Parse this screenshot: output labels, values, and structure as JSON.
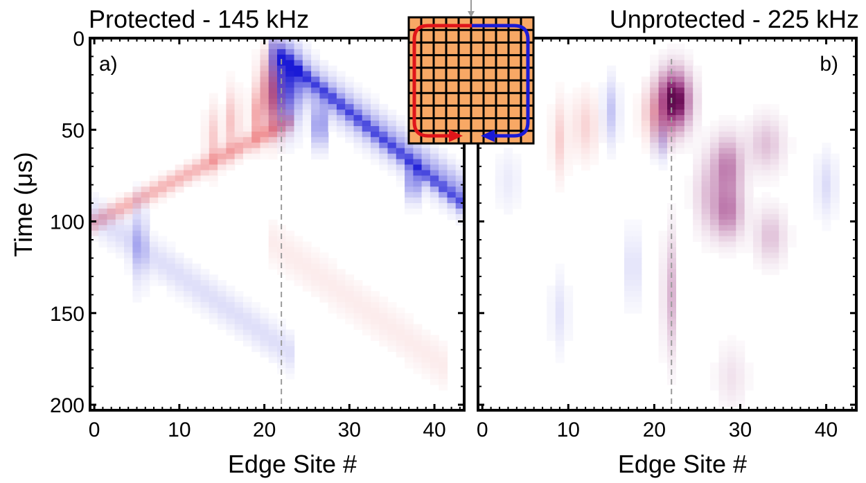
{
  "chart_data": [
    {
      "type": "heatmap",
      "title": "Protected - 145 kHz",
      "panel_label": "a)",
      "xlabel": "Edge Site #",
      "ylabel": "Time (μs)",
      "xlim": [
        -0.5,
        43.5
      ],
      "ylim": [
        0,
        203
      ],
      "y_direction": "downward",
      "xticks": [
        "0",
        "10",
        "20",
        "30",
        "40"
      ],
      "yticks": [
        "0",
        "50",
        "100",
        "150",
        "200"
      ],
      "colors": {
        "positive": "#e0151a",
        "negative": "#1a1ad6"
      },
      "injection_site": 22,
      "features": [
        {
          "kind": "band",
          "sign": 1,
          "x": [
            1,
            22
          ],
          "t": [
            98,
            48
          ],
          "width": 5,
          "amp": 0.32
        },
        {
          "kind": "band",
          "sign": -1,
          "x": [
            22,
            44
          ],
          "t": [
            12,
            88
          ],
          "width": 11,
          "amp": 0.38
        },
        {
          "kind": "band",
          "sign": -1,
          "x": [
            23,
            44
          ],
          "t": [
            14,
            93
          ],
          "width": 4,
          "amp": 0.45
        },
        {
          "kind": "band",
          "sign": -1,
          "x": [
            0,
            22
          ],
          "t": [
            97,
            168
          ],
          "width": 10,
          "amp": 0.14
        },
        {
          "kind": "band",
          "sign": 1,
          "x": [
            22,
            40
          ],
          "t": [
            115,
            175
          ],
          "width": 12,
          "amp": 0.08
        },
        {
          "kind": "blob",
          "sign": 1,
          "x": 21,
          "t": 30,
          "sx": 1.0,
          "st": 14,
          "amp": 0.65
        },
        {
          "kind": "blob",
          "sign": -1,
          "x": 22.6,
          "t": 27,
          "sx": 1.2,
          "st": 14,
          "amp": 0.7
        },
        {
          "kind": "blob",
          "sign": -1,
          "x": 26.5,
          "t": 48,
          "sx": 0.5,
          "st": 8,
          "amp": 0.6
        },
        {
          "kind": "blob",
          "sign": -1,
          "x": 37.5,
          "t": 79,
          "sx": 0.5,
          "st": 7,
          "amp": 0.55
        },
        {
          "kind": "blob",
          "sign": 1,
          "x": 16.3,
          "t": 46,
          "sx": 0.5,
          "st": 12,
          "amp": 0.3
        },
        {
          "kind": "blob",
          "sign": 1,
          "x": 19,
          "t": 43,
          "sx": 0.5,
          "st": 10,
          "amp": 0.3
        },
        {
          "kind": "blob",
          "sign": 1,
          "x": 14,
          "t": 55,
          "sx": 0.6,
          "st": 12,
          "amp": 0.22
        },
        {
          "kind": "blob",
          "sign": -1,
          "x": 5.3,
          "t": 112,
          "sx": 0.6,
          "st": 15,
          "amp": 0.28
        }
      ]
    },
    {
      "type": "heatmap",
      "title": "Unprotected - 225 kHz",
      "panel_label": "b)",
      "xlabel": "Edge Site #",
      "xlim": [
        -0.5,
        43.5
      ],
      "ylim": [
        0,
        203
      ],
      "y_direction": "downward",
      "xticks": [
        "0",
        "10",
        "20",
        "30",
        "40"
      ],
      "colors": {
        "positive": "#e0151a",
        "negative": "#1a1ad6"
      },
      "injection_site": 22,
      "features": [
        {
          "kind": "blob",
          "sign": 0,
          "x": 22.3,
          "t": 34,
          "sx": 1.3,
          "st": 11,
          "amp": 0.95
        },
        {
          "kind": "blob",
          "sign": 1,
          "x": 20.5,
          "t": 42,
          "sx": 1.2,
          "st": 10,
          "amp": 0.35
        },
        {
          "kind": "blob",
          "sign": -1,
          "x": 20.8,
          "t": 55,
          "sx": 0.6,
          "st": 8,
          "amp": 0.25
        },
        {
          "kind": "blob",
          "sign": -1,
          "x": 15,
          "t": 40,
          "sx": 0.6,
          "st": 12,
          "amp": 0.25
        },
        {
          "kind": "blob",
          "sign": 1,
          "x": 9,
          "t": 55,
          "sx": 0.6,
          "st": 14,
          "amp": 0.2
        },
        {
          "kind": "blob",
          "sign": 1,
          "x": 12,
          "t": 48,
          "sx": 1.0,
          "st": 12,
          "amp": 0.18
        },
        {
          "kind": "blob",
          "sign": 0,
          "x": 28.5,
          "t": 70,
          "sx": 1.2,
          "st": 11,
          "amp": 0.45
        },
        {
          "kind": "blob",
          "sign": 0,
          "x": 28.5,
          "t": 95,
          "sx": 1.2,
          "st": 10,
          "amp": 0.45
        },
        {
          "kind": "blob",
          "sign": 0,
          "x": 33,
          "t": 58,
          "sx": 1.4,
          "st": 10,
          "amp": 0.22
        },
        {
          "kind": "blob",
          "sign": 0,
          "x": 33.5,
          "t": 108,
          "sx": 1.2,
          "st": 10,
          "amp": 0.22
        },
        {
          "kind": "blob",
          "sign": 0,
          "x": 26,
          "t": 85,
          "sx": 1.0,
          "st": 14,
          "amp": 0.18
        },
        {
          "kind": "blob",
          "sign": -1,
          "x": 40,
          "t": 80,
          "sx": 0.8,
          "st": 12,
          "amp": 0.15
        },
        {
          "kind": "blob",
          "sign": 0,
          "x": 21.8,
          "t": 140,
          "sx": 0.5,
          "st": 22,
          "amp": 0.28
        },
        {
          "kind": "blob",
          "sign": -1,
          "x": 17.5,
          "t": 125,
          "sx": 0.7,
          "st": 14,
          "amp": 0.14
        },
        {
          "kind": "blob",
          "sign": -1,
          "x": 9,
          "t": 150,
          "sx": 0.7,
          "st": 14,
          "amp": 0.12
        },
        {
          "kind": "blob",
          "sign": 0,
          "x": 29,
          "t": 185,
          "sx": 1.2,
          "st": 12,
          "amp": 0.1
        },
        {
          "kind": "blob",
          "sign": -1,
          "x": 3,
          "t": 78,
          "sx": 1.0,
          "st": 12,
          "amp": 0.08
        }
      ]
    }
  ],
  "inset": {
    "grid_cells": 10,
    "fill": "#f8a865",
    "left_arrow_color": "#e0151a",
    "right_arrow_color": "#1a1ad6",
    "marker_color": "#9a9a9a"
  }
}
